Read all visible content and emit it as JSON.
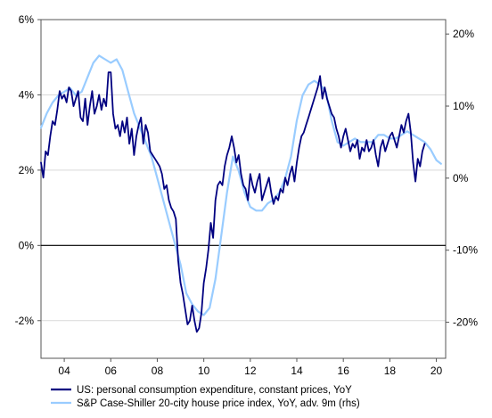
{
  "chart_data": {
    "type": "line",
    "title": "",
    "xlabel": "",
    "ylabel": "",
    "x_range": [
      2003.0,
      2020.4
    ],
    "x_tick_labels": [
      "04",
      "06",
      "08",
      "10",
      "12",
      "14",
      "16",
      "18",
      "20"
    ],
    "x_ticks": [
      2004,
      2006,
      2008,
      2010,
      2012,
      2014,
      2016,
      2018,
      2020
    ],
    "y_left": {
      "range": [
        -3,
        6
      ],
      "ticks": [
        -2,
        0,
        2,
        4,
        6
      ],
      "tick_labels": [
        "-2%",
        "0%",
        "2%",
        "4%",
        "6%"
      ]
    },
    "y_right": {
      "range": [
        -25,
        22
      ],
      "ticks": [
        -20,
        -10,
        0,
        10,
        20
      ],
      "tick_labels": [
        "-20%",
        "-10%",
        "0%",
        "10%",
        "20%"
      ]
    },
    "grid": "horizontal",
    "zero_line": 0,
    "legend_position": "bottom-left",
    "series": [
      {
        "name": "US: personal consumption expenditure, constant prices, YoY",
        "axis": "left",
        "color": "#000080",
        "x": [
          2003.0,
          2003.1,
          2003.2,
          2003.3,
          2003.4,
          2003.5,
          2003.6,
          2003.7,
          2003.8,
          2003.9,
          2004.0,
          2004.1,
          2004.2,
          2004.3,
          2004.4,
          2004.5,
          2004.6,
          2004.7,
          2004.8,
          2004.9,
          2005.0,
          2005.1,
          2005.2,
          2005.3,
          2005.4,
          2005.5,
          2005.6,
          2005.7,
          2005.8,
          2005.9,
          2006.0,
          2006.1,
          2006.2,
          2006.3,
          2006.4,
          2006.5,
          2006.6,
          2006.7,
          2006.8,
          2006.9,
          2007.0,
          2007.1,
          2007.2,
          2007.3,
          2007.4,
          2007.5,
          2007.6,
          2007.7,
          2007.8,
          2007.9,
          2008.0,
          2008.1,
          2008.2,
          2008.3,
          2008.4,
          2008.5,
          2008.6,
          2008.7,
          2008.8,
          2008.9,
          2009.0,
          2009.1,
          2009.2,
          2009.3,
          2009.4,
          2009.5,
          2009.6,
          2009.7,
          2009.8,
          2009.9,
          2010.0,
          2010.1,
          2010.2,
          2010.3,
          2010.4,
          2010.5,
          2010.6,
          2010.7,
          2010.8,
          2010.9,
          2011.0,
          2011.1,
          2011.2,
          2011.3,
          2011.4,
          2011.5,
          2011.6,
          2011.7,
          2011.8,
          2011.9,
          2012.0,
          2012.1,
          2012.2,
          2012.3,
          2012.4,
          2012.5,
          2012.6,
          2012.7,
          2012.8,
          2012.9,
          2013.0,
          2013.1,
          2013.2,
          2013.3,
          2013.4,
          2013.5,
          2013.6,
          2013.7,
          2013.8,
          2013.9,
          2014.0,
          2014.1,
          2014.2,
          2014.3,
          2014.4,
          2014.5,
          2014.6,
          2014.7,
          2014.8,
          2014.9,
          2015.0,
          2015.1,
          2015.2,
          2015.3,
          2015.4,
          2015.5,
          2015.6,
          2015.7,
          2015.8,
          2015.9,
          2016.0,
          2016.1,
          2016.2,
          2016.3,
          2016.4,
          2016.5,
          2016.6,
          2016.7,
          2016.8,
          2016.9,
          2017.0,
          2017.1,
          2017.2,
          2017.3,
          2017.4,
          2017.5,
          2017.6,
          2017.7,
          2017.8,
          2017.9,
          2018.0,
          2018.1,
          2018.2,
          2018.3,
          2018.4,
          2018.5,
          2018.6,
          2018.7,
          2018.8,
          2018.9,
          2019.0,
          2019.1,
          2019.2,
          2019.3,
          2019.4,
          2019.5
        ],
        "y": [
          2.2,
          1.8,
          2.5,
          2.4,
          2.9,
          3.3,
          3.2,
          3.6,
          4.1,
          3.9,
          4.0,
          3.8,
          4.2,
          4.1,
          3.7,
          3.9,
          4.1,
          3.4,
          3.3,
          3.9,
          3.2,
          3.7,
          4.1,
          3.5,
          3.7,
          4.0,
          3.6,
          3.9,
          3.7,
          4.6,
          4.6,
          3.5,
          3.1,
          3.2,
          2.9,
          3.3,
          3.0,
          3.4,
          2.7,
          3.1,
          2.4,
          2.9,
          3.2,
          3.4,
          2.7,
          3.2,
          3.0,
          2.5,
          2.4,
          2.3,
          2.2,
          2.1,
          1.9,
          1.5,
          1.6,
          1.2,
          1.0,
          0.9,
          0.7,
          -0.4,
          -1.0,
          -1.3,
          -1.7,
          -2.1,
          -2.0,
          -1.6,
          -2.0,
          -2.3,
          -2.2,
          -1.8,
          -1.0,
          -0.6,
          -0.1,
          0.6,
          0.2,
          1.2,
          1.6,
          1.7,
          1.6,
          2.1,
          2.4,
          2.6,
          2.9,
          2.6,
          2.2,
          2.4,
          1.9,
          1.6,
          1.5,
          1.2,
          1.9,
          1.6,
          1.4,
          1.7,
          1.9,
          1.2,
          1.4,
          1.6,
          1.8,
          1.4,
          1.1,
          1.3,
          1.2,
          1.5,
          1.4,
          1.8,
          1.6,
          1.9,
          2.1,
          1.7,
          2.2,
          2.6,
          2.9,
          3.0,
          3.2,
          3.4,
          3.6,
          3.8,
          4.0,
          4.2,
          4.5,
          3.9,
          4.2,
          3.9,
          3.7,
          3.5,
          3.4,
          3.1,
          2.9,
          2.6,
          2.9,
          3.1,
          2.8,
          2.5,
          2.7,
          2.6,
          2.8,
          2.3,
          2.6,
          2.5,
          2.8,
          2.5,
          2.6,
          2.8,
          2.4,
          2.1,
          2.6,
          2.8,
          2.5,
          2.7,
          2.9,
          3.0,
          2.8,
          2.6,
          2.9,
          3.2,
          3.0,
          3.3,
          3.5,
          3.0,
          2.2,
          1.7,
          2.3,
          2.1,
          2.5,
          2.7
        ]
      },
      {
        "name": "S&P Case-Shiller 20-city house price index, YoY, adv. 9m (rhs)",
        "axis": "right",
        "color": "#99ccff",
        "x": [
          2003.0,
          2003.25,
          2003.5,
          2003.75,
          2004.0,
          2004.25,
          2004.5,
          2004.75,
          2005.0,
          2005.25,
          2005.5,
          2005.75,
          2006.0,
          2006.25,
          2006.5,
          2006.75,
          2007.0,
          2007.25,
          2007.5,
          2007.75,
          2008.0,
          2008.25,
          2008.5,
          2008.75,
          2009.0,
          2009.25,
          2009.5,
          2009.75,
          2010.0,
          2010.25,
          2010.5,
          2010.75,
          2011.0,
          2011.25,
          2011.5,
          2011.75,
          2012.0,
          2012.25,
          2012.5,
          2012.75,
          2013.0,
          2013.25,
          2013.5,
          2013.75,
          2014.0,
          2014.25,
          2014.5,
          2014.75,
          2015.0,
          2015.25,
          2015.5,
          2015.75,
          2016.0,
          2016.25,
          2016.5,
          2016.75,
          2017.0,
          2017.25,
          2017.5,
          2017.75,
          2018.0,
          2018.25,
          2018.5,
          2018.75,
          2019.0,
          2019.25,
          2019.5,
          2019.75,
          2020.0,
          2020.2
        ],
        "y": [
          7,
          9,
          10.5,
          11.5,
          12,
          12.5,
          11.5,
          12,
          14,
          16,
          17,
          16.5,
          16,
          16.5,
          15,
          12,
          9,
          7,
          5,
          3,
          0,
          -3,
          -6,
          -9,
          -12,
          -16,
          -17.5,
          -18.5,
          -19,
          -18,
          -14,
          -8,
          -2,
          3,
          1,
          -2,
          -4,
          -4.5,
          -4.5,
          -3.5,
          -3,
          -2,
          0,
          3,
          8,
          11.5,
          13,
          13.5,
          13,
          12,
          8,
          5,
          4.5,
          5,
          5.5,
          5,
          5,
          5,
          6,
          6,
          5.5,
          5.5,
          6,
          6.5,
          6,
          5.5,
          5,
          4,
          2.5,
          2
        ]
      }
    ]
  },
  "legend": {
    "items": [
      {
        "label": "US: personal consumption expenditure, constant prices, YoY",
        "color": "#000080"
      },
      {
        "label": "S&P Case-Shiller 20-city house price index, YoY, adv. 9m (rhs)",
        "color": "#99ccff"
      }
    ]
  }
}
